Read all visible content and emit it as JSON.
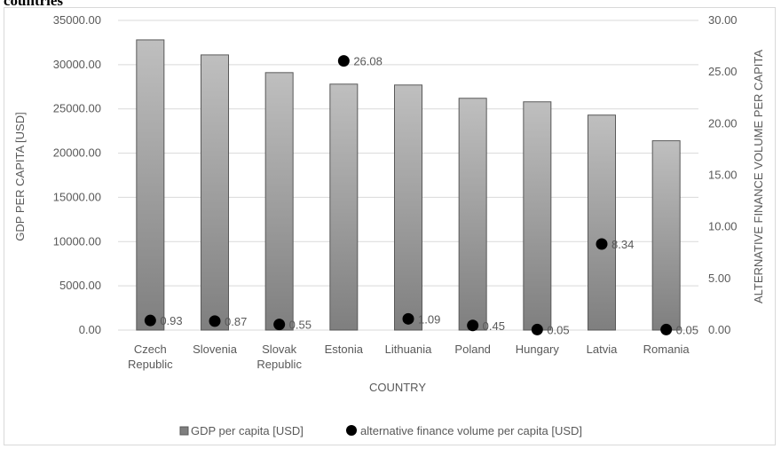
{
  "page_top_text": "countries",
  "chart_data": {
    "type": "bar+scatter",
    "categories": [
      "Czech Republic",
      "Slovenia",
      "Slovak Republic",
      "Estonia",
      "Lithuania",
      "Poland",
      "Hungary",
      "Latvia",
      "Romania"
    ],
    "category_lines": [
      [
        "Czech",
        "Republic"
      ],
      [
        "Slovenia"
      ],
      [
        "Slovak",
        "Republic"
      ],
      [
        "Estonia"
      ],
      [
        "Lithuania"
      ],
      [
        "Poland"
      ],
      [
        "Hungary"
      ],
      [
        "Latvia"
      ],
      [
        "Romania"
      ]
    ],
    "series": [
      {
        "name": "GDP per capita [USD]",
        "type": "bar",
        "axis": "left",
        "values": [
          32800,
          31100,
          29100,
          27800,
          27700,
          26200,
          25800,
          24300,
          21400
        ]
      },
      {
        "name": "alternative finance volume per capita [USD]",
        "type": "scatter",
        "axis": "right",
        "values": [
          0.93,
          0.87,
          0.55,
          26.08,
          1.09,
          0.45,
          0.05,
          8.34,
          0.05
        ],
        "labels": [
          "0.93",
          "0.87",
          "0.55",
          "26.08",
          "1.09",
          "0.45",
          "0.05",
          "8.34",
          "0.05"
        ]
      }
    ],
    "xlabel": "COUNTRY",
    "ylabel": "GDP PER CAPITA [USD]",
    "y2label": "ALTERNATIVE FINANCE VOLUME PER CAPITA",
    "ylim": [
      0,
      35000
    ],
    "y2lim": [
      0,
      30
    ],
    "yticks": [
      "0.00",
      "5000.00",
      "10000.00",
      "15000.00",
      "20000.00",
      "25000.00",
      "30000.00",
      "35000.00"
    ],
    "y2ticks": [
      "0.00",
      "5.00",
      "10.00",
      "15.00",
      "20.00",
      "25.00",
      "30.00"
    ],
    "grid": true,
    "legend_position": "bottom",
    "colors": {
      "bar_light": "#bfbfbf",
      "bar_dark": "#7f7f7f",
      "bar_stroke": "#595959",
      "dot": "#000000",
      "grid": "#d9d9d9",
      "text": "#595959"
    }
  }
}
